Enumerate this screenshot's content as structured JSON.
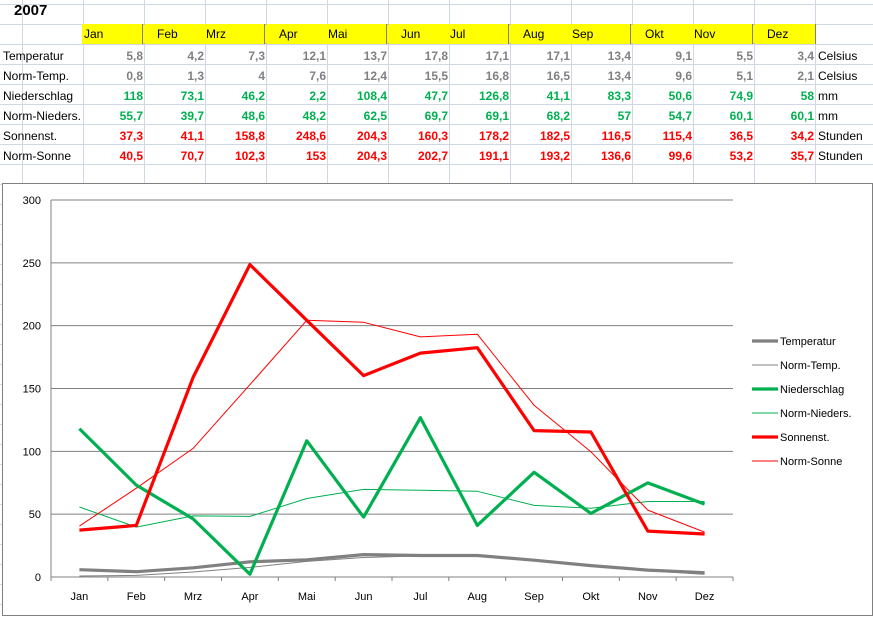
{
  "year": "2007",
  "months": [
    "Jan",
    "Feb",
    "Mrz",
    "Apr",
    "Mai",
    "Jun",
    "Jul",
    "Aug",
    "Sep",
    "Okt",
    "Nov",
    "Dez"
  ],
  "table": [
    {
      "label": "Temperatur",
      "unit": "Celsius",
      "color": "#808080",
      "values": [
        "5,8",
        "4,2",
        "7,3",
        "12,1",
        "13,7",
        "17,8",
        "17,1",
        "17,1",
        "13,4",
        "9,1",
        "5,5",
        "3,4"
      ]
    },
    {
      "label": "Norm-Temp.",
      "unit": "Celsius",
      "color": "#808080",
      "values": [
        "0,8",
        "1,3",
        "4",
        "7,6",
        "12,4",
        "15,5",
        "16,8",
        "16,5",
        "13,4",
        "9,6",
        "5,1",
        "2,1"
      ]
    },
    {
      "label": "Niederschlag",
      "unit": "mm",
      "color": "#00b050",
      "values": [
        "118",
        "73,1",
        "46,2",
        "2,2",
        "108,4",
        "47,7",
        "126,8",
        "41,1",
        "83,3",
        "50,6",
        "74,9",
        "58"
      ]
    },
    {
      "label": "Norm-Nieders.",
      "unit": "mm",
      "color": "#00b050",
      "values": [
        "55,7",
        "39,7",
        "48,6",
        "48,2",
        "62,5",
        "69,7",
        "69,1",
        "68,2",
        "57",
        "54,7",
        "60,1",
        "60,1"
      ]
    },
    {
      "label": "Sonnenst.",
      "unit": "Stunden",
      "color": "#ff0000",
      "values": [
        "37,3",
        "41,1",
        "158,8",
        "248,6",
        "204,3",
        "160,3",
        "178,2",
        "182,5",
        "116,5",
        "115,4",
        "36,5",
        "34,2"
      ]
    },
    {
      "label": "Norm-Sonne",
      "unit": "Stunden",
      "color": "#ff0000",
      "values": [
        "40,5",
        "70,7",
        "102,3",
        "153",
        "204,3",
        "202,7",
        "191,1",
        "193,2",
        "136,6",
        "99,6",
        "53,2",
        "35,7"
      ]
    }
  ],
  "chart_data": {
    "type": "line",
    "categories": [
      "Jan",
      "Feb",
      "Mrz",
      "Apr",
      "Mai",
      "Jun",
      "Jul",
      "Aug",
      "Sep",
      "Okt",
      "Nov",
      "Dez"
    ],
    "ylim": [
      0,
      300
    ],
    "yticks": [
      0,
      50,
      100,
      150,
      200,
      250,
      300
    ],
    "grid": true,
    "legend": "right",
    "series": [
      {
        "name": "Temperatur",
        "color": "#808080",
        "weight": "bold",
        "values": [
          5.8,
          4.2,
          7.3,
          12.1,
          13.7,
          17.8,
          17.1,
          17.1,
          13.4,
          9.1,
          5.5,
          3.4
        ]
      },
      {
        "name": "Norm-Temp.",
        "color": "#808080",
        "weight": "thin",
        "values": [
          0.8,
          1.3,
          4,
          7.6,
          12.4,
          15.5,
          16.8,
          16.5,
          13.4,
          9.6,
          5.1,
          2.1
        ]
      },
      {
        "name": "Niederschlag",
        "color": "#00b050",
        "weight": "bold",
        "values": [
          118,
          73.1,
          46.2,
          2.2,
          108.4,
          47.7,
          126.8,
          41.1,
          83.3,
          50.6,
          74.9,
          58
        ]
      },
      {
        "name": "Norm-Nieders.",
        "color": "#00b050",
        "weight": "thin",
        "values": [
          55.7,
          39.7,
          48.6,
          48.2,
          62.5,
          69.7,
          69.1,
          68.2,
          57,
          54.7,
          60.1,
          60.1
        ]
      },
      {
        "name": "Sonnenst.",
        "color": "#ff0000",
        "weight": "bold",
        "values": [
          37.3,
          41.1,
          158.8,
          248.6,
          204.3,
          160.3,
          178.2,
          182.5,
          116.5,
          115.4,
          36.5,
          34.2
        ]
      },
      {
        "name": "Norm-Sonne",
        "color": "#ff0000",
        "weight": "thin",
        "values": [
          40.5,
          70.7,
          102.3,
          153,
          204.3,
          202.7,
          191.1,
          193.2,
          136.6,
          99.6,
          53.2,
          35.7
        ]
      }
    ]
  }
}
